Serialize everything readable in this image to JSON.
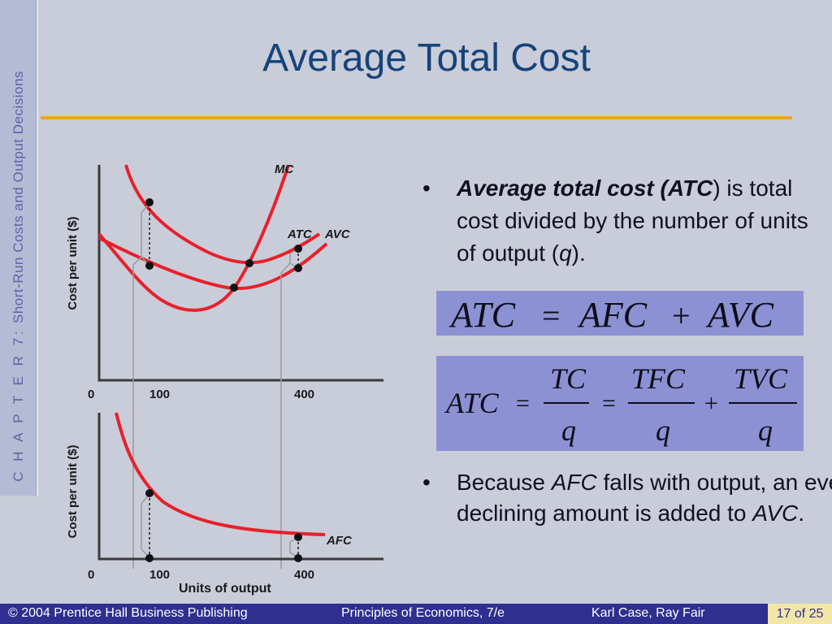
{
  "sidebar": {
    "chapter": "C H A P T E R  7:",
    "text": "Short-Run Costs and Output Decisions"
  },
  "title": "Average Total Cost",
  "graphs": {
    "top": {
      "y_axis_label": "Cost per unit ($)",
      "x_ticks": [
        "0",
        "100",
        "400"
      ],
      "curve_labels": {
        "mc": "MC",
        "atc": "ATC",
        "avc": "AVC"
      }
    },
    "bottom": {
      "y_axis_label": "Cost per unit ($)",
      "x_ticks": [
        "0",
        "100",
        "400"
      ],
      "x_axis_label": "Units of output",
      "curve_labels": {
        "afc": "AFC"
      }
    }
  },
  "bullets": {
    "b1": {
      "bold_italic": "Average total cost (ATC",
      "rest_1": ") is total cost divided by the number of units of output (",
      "q": "q",
      "rest_2": ")."
    },
    "b2": {
      "p1": "Because ",
      "afc": "AFC",
      "p2": " falls with output, an ever-declining amount is added to ",
      "avc": "AVC",
      "p3": "."
    }
  },
  "formula1": {
    "atc": "ATC",
    "eq": "=",
    "afc": "AFC",
    "plus": "+",
    "avc": "AVC"
  },
  "formula2": {
    "atc": "ATC",
    "eq1": "=",
    "tc": "TC",
    "q1": "q",
    "eq2": "=",
    "tfc": "TFC",
    "q2": "q",
    "plus": "+",
    "tvc": "TVC",
    "q3": "q"
  },
  "footer": {
    "publisher": "© 2004 Prentice Hall Business Publishing",
    "book": "Principles of Economics, 7/e",
    "authors": "Karl Case, Ray Fair",
    "page": "17 of 25"
  },
  "colors": {
    "curve": "#e8202a",
    "title": "#16437a",
    "rule": "#f1a51d",
    "formula_bg": "#8c91d3",
    "footer_bg": "#2e2f8e"
  }
}
